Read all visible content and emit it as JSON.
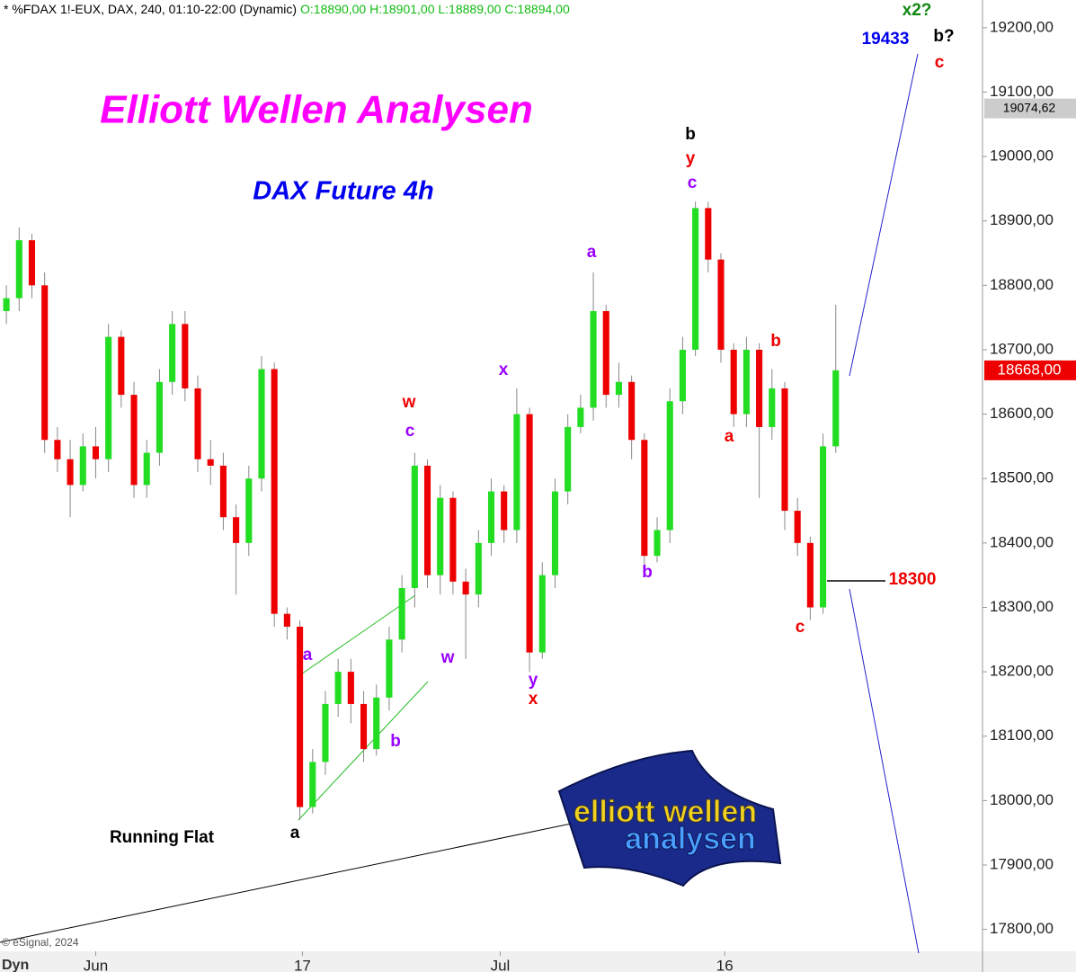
{
  "chart_data": {
    "type": "candlestick",
    "header": "* %FDAX 1!-EUX, DAX, 240, 01:10-22:00 (Dynamic)",
    "header_ohlc": "O:18890,00 H:18901,00 L:18889,00 C:18894,00",
    "title": "Elliott Wellen Analysen",
    "subtitle": "DAX Future 4h",
    "copyright": "© eSignal, 2024",
    "mode": "Dyn",
    "logo_text": [
      "elliott wellen",
      "analysen"
    ],
    "up_color": "#22dd22",
    "down_color": "#ee0000",
    "open": [
      18760,
      18780,
      18870,
      18800,
      18560,
      18530,
      18490,
      18550,
      18530,
      18720,
      18630,
      18490,
      18540,
      18650,
      18740,
      18640,
      18530,
      18520,
      18440,
      18400,
      18500,
      18670,
      18290,
      18270,
      17990,
      18060,
      18150,
      18200,
      18150,
      18080,
      18160,
      18250,
      18330,
      18520,
      18350,
      18470,
      18340,
      18320,
      18400,
      18480,
      18420,
      18600,
      18230,
      18350,
      18480,
      18580,
      18610,
      18760,
      18630,
      18650,
      18560,
      18380,
      18420,
      18620,
      18700,
      18920,
      18840,
      18700,
      18600,
      18700,
      18580,
      18640,
      18450,
      18400,
      18300,
      18550
    ],
    "high": [
      18800,
      18890,
      18880,
      18820,
      18580,
      18560,
      18570,
      18580,
      18740,
      18730,
      18650,
      18560,
      18670,
      18760,
      18760,
      18660,
      18560,
      18540,
      18460,
      18520,
      18690,
      18680,
      18300,
      18280,
      18080,
      18170,
      18220,
      18220,
      18170,
      18180,
      18270,
      18350,
      18540,
      18530,
      18490,
      18480,
      18360,
      18420,
      18500,
      18490,
      18640,
      18610,
      18370,
      18500,
      18600,
      18630,
      18820,
      18770,
      18680,
      18660,
      18570,
      18440,
      18640,
      18720,
      18930,
      18930,
      18850,
      18710,
      18720,
      18710,
      18670,
      18650,
      18470,
      18410,
      18570,
      18770
    ],
    "low": [
      18740,
      18760,
      18780,
      18540,
      18510,
      18440,
      18480,
      18500,
      18510,
      18610,
      18470,
      18470,
      18520,
      18630,
      18620,
      18510,
      18490,
      18420,
      18320,
      18380,
      18480,
      18270,
      18250,
      17970,
      17980,
      18040,
      18130,
      18120,
      18060,
      18070,
      18140,
      18230,
      18300,
      18330,
      18320,
      18320,
      18220,
      18300,
      18380,
      18400,
      18400,
      18200,
      18220,
      18330,
      18460,
      18570,
      18590,
      18610,
      18610,
      18530,
      18360,
      18370,
      18400,
      18600,
      18690,
      18820,
      18680,
      18580,
      18580,
      18470,
      18560,
      18420,
      18380,
      18280,
      18290,
      18540
    ],
    "close": [
      18780,
      18870,
      18800,
      18560,
      18530,
      18490,
      18550,
      18530,
      18720,
      18630,
      18490,
      18540,
      18650,
      18740,
      18640,
      18530,
      18520,
      18440,
      18400,
      18500,
      18670,
      18290,
      18270,
      17990,
      18060,
      18150,
      18200,
      18150,
      18080,
      18160,
      18250,
      18330,
      18520,
      18350,
      18470,
      18340,
      18320,
      18400,
      18480,
      18420,
      18600,
      18230,
      18350,
      18480,
      18580,
      18610,
      18760,
      18630,
      18650,
      18560,
      18380,
      18420,
      18620,
      18700,
      18920,
      18840,
      18700,
      18600,
      18700,
      18580,
      18640,
      18450,
      18400,
      18300,
      18550,
      18668
    ],
    "xlim": [
      -0.5,
      76.5
    ],
    "xticks": [
      {
        "value": 7,
        "label": "Jun"
      },
      {
        "value": 23.2,
        "label": "17"
      },
      {
        "value": 38.7,
        "label": "Jul"
      },
      {
        "value": 56.3,
        "label": "16"
      }
    ],
    "ylim": [
      17766,
      19243
    ],
    "yticks": [
      {
        "value": 17800,
        "label": "17800,00"
      },
      {
        "value": 17900,
        "label": "17900,00"
      },
      {
        "value": 18000,
        "label": "18000,00"
      },
      {
        "value": 18100,
        "label": "18100,00"
      },
      {
        "value": 18200,
        "label": "18200,00"
      },
      {
        "value": 18300,
        "label": "18300,00"
      },
      {
        "value": 18400,
        "label": "18400,00"
      },
      {
        "value": 18500,
        "label": "18500,00"
      },
      {
        "value": 18600,
        "label": "18600,00"
      },
      {
        "value": 18700,
        "label": "18700,00"
      },
      {
        "value": 18800,
        "label": "18800,00"
      },
      {
        "value": 18900,
        "label": "18900,00"
      },
      {
        "value": 19000,
        "label": "19000,00"
      },
      {
        "value": 19100,
        "label": "19100,00"
      },
      {
        "value": 19200,
        "label": "19200,00"
      }
    ],
    "price_tags": [
      {
        "value": 19074.62,
        "label": "19074,62",
        "color": "#cccccc",
        "text_color": "#000000"
      },
      {
        "value": 18668,
        "label": "18668,00",
        "color": "#ee0000",
        "text_color": "#ffffff"
      }
    ],
    "annotations": [
      {
        "text": "b",
        "color": "#000000"
      },
      {
        "text": "y",
        "color": "#ee0000"
      },
      {
        "text": "c",
        "color": "#9900ff"
      },
      {
        "text": "a",
        "color": "#9900ff"
      },
      {
        "text": "x",
        "color": "#9900ff"
      },
      {
        "text": "w",
        "color": "#ee0000"
      },
      {
        "text": "c",
        "color": "#9900ff"
      },
      {
        "text": "a",
        "color": "#9900ff"
      },
      {
        "text": "w",
        "color": "#9900ff"
      },
      {
        "text": "b",
        "color": "#9900ff"
      },
      {
        "text": "y",
        "color": "#9900ff"
      },
      {
        "text": "x",
        "color": "#ee0000"
      },
      {
        "text": "a",
        "color": "#000000"
      },
      {
        "text": "b",
        "color": "#9900ff"
      },
      {
        "text": "b",
        "color": "#ee0000"
      },
      {
        "text": "a",
        "color": "#ee0000"
      },
      {
        "text": "c",
        "color": "#ee0000"
      },
      {
        "text": "x2?",
        "color": "#118811"
      },
      {
        "text": "b?",
        "color": "#000000"
      },
      {
        "text": "c",
        "color": "#ee0000"
      },
      {
        "text": "19433",
        "color": "#0000ee"
      },
      {
        "text": "18300",
        "color": "#ee0000"
      },
      {
        "text": "Running Flat",
        "color": "#000000"
      }
    ]
  }
}
